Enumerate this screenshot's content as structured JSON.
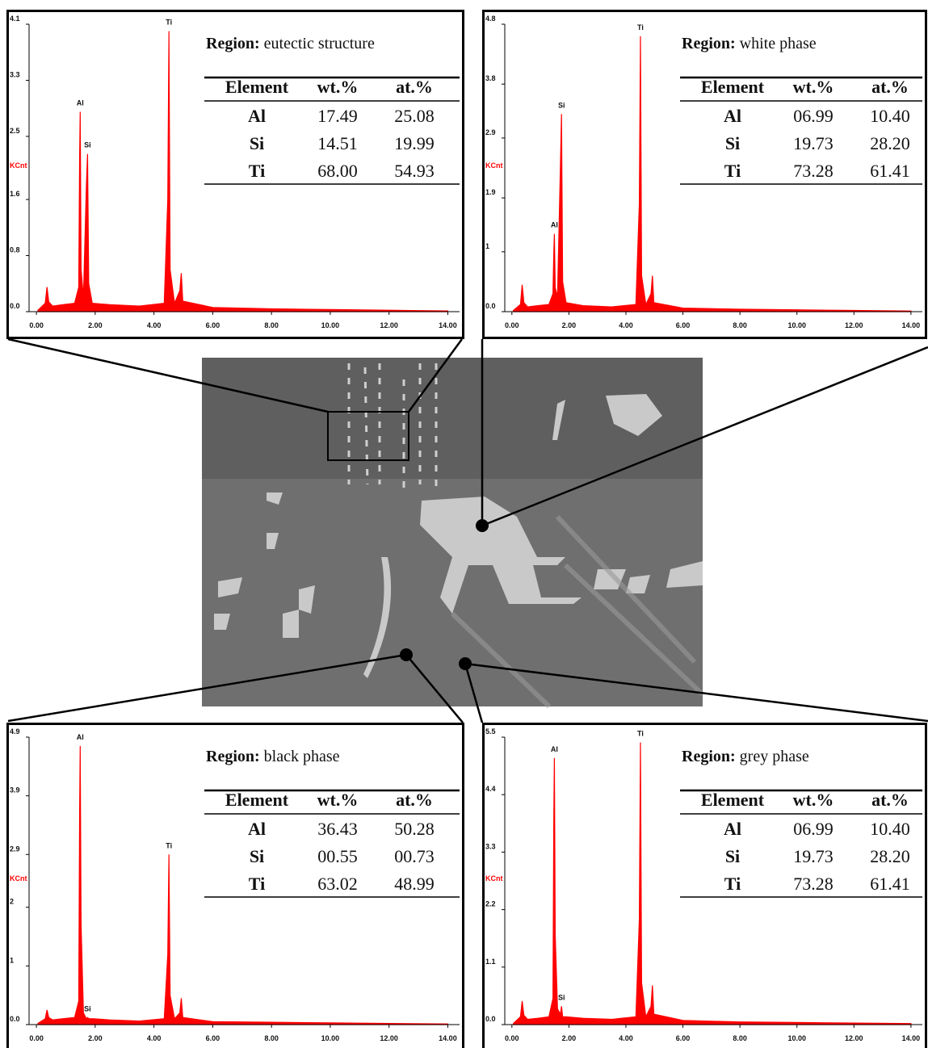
{
  "chart_data": [
    {
      "type": "area",
      "color": "#ff0000",
      "y_label": "KCnt",
      "x": [
        0.05,
        0.3,
        0.36,
        0.42,
        0.55,
        0.9,
        1.3,
        1.44,
        1.47,
        1.49,
        1.52,
        1.6,
        1.7,
        1.74,
        1.78,
        1.9,
        2.5,
        3.5,
        4.35,
        4.47,
        4.51,
        4.55,
        4.7,
        4.88,
        4.93,
        4.98,
        6,
        8,
        10,
        12,
        14
      ],
      "values": [
        0.02,
        0.12,
        0.35,
        0.14,
        0.08,
        0.1,
        0.12,
        0.35,
        2.2,
        2.85,
        0.6,
        0.2,
        1.8,
        2.25,
        0.4,
        0.12,
        0.1,
        0.08,
        0.12,
        1.6,
        4.0,
        0.6,
        0.12,
        0.3,
        0.55,
        0.15,
        0.06,
        0.04,
        0.03,
        0.02,
        0.01
      ],
      "xlim": [
        -0.25,
        14.4
      ],
      "xticks": [
        {
          "value": 0,
          "label": "0.00"
        },
        {
          "value": 2,
          "label": "2.00"
        },
        {
          "value": 4,
          "label": "4.00"
        },
        {
          "value": 6,
          "label": "6.00"
        },
        {
          "value": 8,
          "label": "8.00"
        },
        {
          "value": 10,
          "label": "10.00"
        },
        {
          "value": 12,
          "label": "12.00"
        },
        {
          "value": 14,
          "label": "14.00"
        }
      ],
      "ylim": [
        0,
        4.1
      ],
      "yticks": [
        {
          "value": 0,
          "label": "0.0"
        },
        0.8,
        1.6,
        2.5,
        3.3,
        4.1
      ],
      "annotations": [
        {
          "text": "Al",
          "x": 1.49,
          "y": 2.85
        },
        {
          "text": "Si",
          "x": 1.74,
          "y": 2.25
        },
        {
          "text": "Ti",
          "x": 4.51,
          "y": 4.0
        }
      ],
      "region_label": "Region:",
      "region": "eutectic structure",
      "table": {
        "header": [
          "Element",
          "wt.%",
          "at.%"
        ],
        "rows": [
          [
            "Al",
            "17.49",
            "25.08"
          ],
          [
            "Si",
            "14.51",
            "19.99"
          ],
          [
            "Ti",
            "68.00",
            "54.93"
          ]
        ]
      }
    },
    {
      "type": "area",
      "color": "#ff0000",
      "y_label": "KCnt",
      "x": [
        0.05,
        0.3,
        0.36,
        0.42,
        0.55,
        0.9,
        1.3,
        1.44,
        1.47,
        1.49,
        1.52,
        1.6,
        1.7,
        1.74,
        1.78,
        1.9,
        2.5,
        3.5,
        4.35,
        4.47,
        4.51,
        4.55,
        4.7,
        4.88,
        4.93,
        4.98,
        6,
        8,
        10,
        12,
        14
      ],
      "values": [
        0.02,
        0.12,
        0.45,
        0.15,
        0.08,
        0.1,
        0.12,
        0.3,
        1.0,
        1.3,
        0.4,
        0.25,
        2.4,
        3.3,
        0.5,
        0.15,
        0.1,
        0.08,
        0.12,
        1.8,
        4.6,
        0.6,
        0.12,
        0.3,
        0.6,
        0.15,
        0.06,
        0.04,
        0.03,
        0.02,
        0.01
      ],
      "xlim": [
        -0.25,
        14.4
      ],
      "xticks": [
        {
          "value": 0,
          "label": "0.00"
        },
        {
          "value": 2,
          "label": "2.00"
        },
        {
          "value": 4,
          "label": "4.00"
        },
        {
          "value": 6,
          "label": "6.00"
        },
        {
          "value": 8,
          "label": "8.00"
        },
        {
          "value": 10,
          "label": "10.00"
        },
        {
          "value": 12,
          "label": "12.00"
        },
        {
          "value": 14,
          "label": "14.00"
        }
      ],
      "ylim": [
        0,
        4.8
      ],
      "yticks": [
        {
          "value": 0,
          "label": "0.0"
        },
        1.0,
        1.9,
        2.9,
        3.8,
        4.8
      ],
      "annotations": [
        {
          "text": "Al",
          "x": 1.49,
          "y": 1.3
        },
        {
          "text": "Si",
          "x": 1.74,
          "y": 3.3
        },
        {
          "text": "Ti",
          "x": 4.51,
          "y": 4.6
        }
      ],
      "region_label": "Region:",
      "region": "white phase",
      "table": {
        "header": [
          "Element",
          "wt.%",
          "at.%"
        ],
        "rows": [
          [
            "Al",
            "06.99",
            "10.40"
          ],
          [
            "Si",
            "19.73",
            "28.20"
          ],
          [
            "Ti",
            "73.28",
            "61.41"
          ]
        ]
      }
    },
    {
      "type": "area",
      "color": "#ff0000",
      "y_label": "KCnt",
      "x": [
        0.05,
        0.3,
        0.36,
        0.42,
        0.55,
        0.9,
        1.3,
        1.44,
        1.47,
        1.49,
        1.52,
        1.6,
        1.7,
        1.74,
        1.78,
        1.9,
        2.5,
        3.5,
        4.35,
        4.47,
        4.51,
        4.55,
        4.7,
        4.88,
        4.93,
        4.98,
        6,
        8,
        10,
        12,
        14
      ],
      "values": [
        0.02,
        0.1,
        0.25,
        0.12,
        0.08,
        0.1,
        0.12,
        0.4,
        3.6,
        4.75,
        1.7,
        0.2,
        0.1,
        0.12,
        0.1,
        0.1,
        0.08,
        0.06,
        0.1,
        1.2,
        2.9,
        0.5,
        0.1,
        0.2,
        0.45,
        0.12,
        0.05,
        0.04,
        0.03,
        0.02,
        0.01
      ],
      "xlim": [
        -0.25,
        14.4
      ],
      "xticks": [
        {
          "value": 0,
          "label": "0.00"
        },
        {
          "value": 2,
          "label": "2.00"
        },
        {
          "value": 4,
          "label": "4.00"
        },
        {
          "value": 6,
          "label": "6.00"
        },
        {
          "value": 8,
          "label": "8.00"
        },
        {
          "value": 10,
          "label": "10.00"
        },
        {
          "value": 12,
          "label": "12.00"
        },
        {
          "value": 14,
          "label": "14.00"
        }
      ],
      "ylim": [
        0,
        4.9
      ],
      "yticks": [
        {
          "value": 0,
          "label": "0.0"
        },
        1.0,
        2.0,
        2.9,
        3.9,
        4.9
      ],
      "annotations": [
        {
          "text": "Al",
          "x": 1.49,
          "y": 4.75
        },
        {
          "text": "Si",
          "x": 1.74,
          "y": 0.12
        },
        {
          "text": "Ti",
          "x": 4.51,
          "y": 2.9
        }
      ],
      "region_label": "Region:",
      "region": "black phase",
      "table": {
        "header": [
          "Element",
          "wt.%",
          "at.%"
        ],
        "rows": [
          [
            "Al",
            "36.43",
            "50.28"
          ],
          [
            "Si",
            "00.55",
            "00.73"
          ],
          [
            "Ti",
            "63.02",
            "48.99"
          ]
        ]
      }
    },
    {
      "type": "area",
      "color": "#ff0000",
      "y_label": "KCnt",
      "x": [
        0.05,
        0.3,
        0.36,
        0.42,
        0.55,
        0.9,
        1.3,
        1.44,
        1.47,
        1.49,
        1.52,
        1.6,
        1.7,
        1.74,
        1.78,
        1.9,
        2.5,
        3.5,
        4.35,
        4.47,
        4.51,
        4.55,
        4.7,
        4.88,
        4.93,
        4.98,
        6,
        8,
        10,
        12,
        14
      ],
      "values": [
        0.02,
        0.15,
        0.45,
        0.18,
        0.1,
        0.12,
        0.15,
        0.5,
        4.0,
        5.1,
        1.7,
        0.3,
        0.2,
        0.35,
        0.15,
        0.15,
        0.12,
        0.1,
        0.15,
        2.0,
        5.4,
        0.8,
        0.15,
        0.35,
        0.75,
        0.2,
        0.08,
        0.05,
        0.04,
        0.03,
        0.02
      ],
      "xlim": [
        -0.25,
        14.4
      ],
      "xticks": [
        {
          "value": 0,
          "label": "0.00"
        },
        {
          "value": 2,
          "label": "2.00"
        },
        {
          "value": 4,
          "label": "4.00"
        },
        {
          "value": 6,
          "label": "6.00"
        },
        {
          "value": 8,
          "label": "8.00"
        },
        {
          "value": 10,
          "label": "10.00"
        },
        {
          "value": 12,
          "label": "12.00"
        },
        {
          "value": 14,
          "label": "14.00"
        }
      ],
      "ylim": [
        0,
        5.5
      ],
      "yticks": [
        {
          "value": 0,
          "label": "0.0"
        },
        1.1,
        2.2,
        3.3,
        4.4,
        5.5
      ],
      "annotations": [
        {
          "text": "Al",
          "x": 1.49,
          "y": 5.1
        },
        {
          "text": "Si",
          "x": 1.74,
          "y": 0.35
        },
        {
          "text": "Ti",
          "x": 4.51,
          "y": 5.4
        }
      ],
      "region_label": "Region:",
      "region": "grey phase",
      "table": {
        "header": [
          "Element",
          "wt.%",
          "at.%"
        ],
        "rows": [
          [
            "Al",
            "06.99",
            "10.40"
          ],
          [
            "Si",
            "19.73",
            "28.20"
          ],
          [
            "Ti",
            "73.28",
            "61.41"
          ]
        ]
      }
    }
  ]
}
